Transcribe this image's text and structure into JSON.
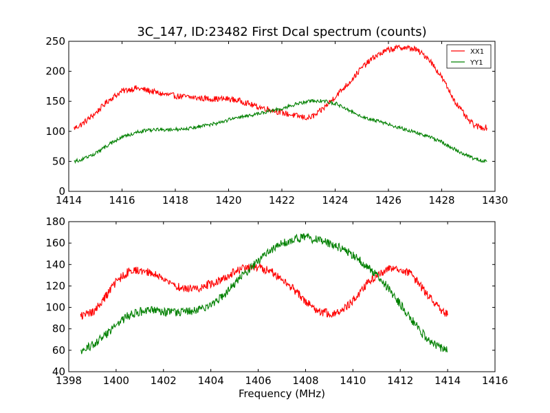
{
  "title": "3C_147, ID:23482 First Dcal spectrum (counts)",
  "colors": {
    "XX1": "#ff0000",
    "YY1": "#008000",
    "axes": "#000000",
    "background": "#ffffff"
  },
  "chart_data": [
    {
      "type": "line",
      "title": "3C_147, ID:23482 First Dcal spectrum (counts)",
      "xlabel": "",
      "ylabel": "",
      "xlim": [
        1414,
        1430
      ],
      "ylim": [
        0,
        250
      ],
      "xticks": [
        1414,
        1416,
        1418,
        1420,
        1422,
        1424,
        1426,
        1428,
        1430
      ],
      "yticks": [
        0,
        50,
        100,
        150,
        200,
        250
      ],
      "grid": false,
      "legend": {
        "placement": "top-right",
        "entries": [
          "XX1",
          "YY1"
        ]
      },
      "noise_amplitude": [
        5,
        3
      ],
      "series": [
        {
          "name": "XX1",
          "color": "#ff0000",
          "x": [
            1414.2,
            1414.5,
            1415.0,
            1415.5,
            1416.0,
            1416.5,
            1417.0,
            1417.5,
            1418.0,
            1418.5,
            1419.0,
            1419.5,
            1420.0,
            1420.5,
            1421.0,
            1421.5,
            1422.0,
            1422.5,
            1423.0,
            1423.3,
            1423.6,
            1424.0,
            1424.5,
            1425.0,
            1425.5,
            1426.0,
            1426.5,
            1427.0,
            1427.5,
            1428.0,
            1428.5,
            1429.0,
            1429.3,
            1429.7
          ],
          "y": [
            105,
            112,
            130,
            152,
            167,
            172,
            168,
            162,
            159,
            157,
            155,
            154,
            154,
            150,
            142,
            137,
            131,
            126,
            122,
            128,
            140,
            158,
            180,
            206,
            225,
            236,
            240,
            237,
            222,
            190,
            150,
            118,
            108,
            106
          ]
        },
        {
          "name": "YY1",
          "color": "#008000",
          "x": [
            1414.2,
            1414.5,
            1415.0,
            1415.5,
            1416.0,
            1416.5,
            1417.0,
            1417.5,
            1418.0,
            1418.5,
            1419.0,
            1419.5,
            1420.0,
            1420.5,
            1421.0,
            1421.5,
            1422.0,
            1422.5,
            1423.0,
            1423.5,
            1424.0,
            1424.5,
            1425.0,
            1425.5,
            1426.0,
            1426.5,
            1427.0,
            1427.5,
            1428.0,
            1428.5,
            1429.0,
            1429.5,
            1429.7
          ],
          "y": [
            50,
            53,
            63,
            78,
            90,
            98,
            102,
            103,
            103,
            105,
            109,
            113,
            119,
            124,
            128,
            133,
            138,
            145,
            150,
            151,
            147,
            135,
            125,
            118,
            112,
            105,
            98,
            92,
            82,
            70,
            58,
            51,
            51
          ]
        }
      ]
    },
    {
      "type": "line",
      "title": "",
      "xlabel": "Frequency (MHz)",
      "ylabel": "",
      "xlim": [
        1398,
        1416
      ],
      "ylim": [
        40,
        180
      ],
      "xticks": [
        1398,
        1400,
        1402,
        1404,
        1406,
        1408,
        1410,
        1412,
        1414,
        1416
      ],
      "yticks": [
        40,
        60,
        80,
        100,
        120,
        140,
        160,
        180
      ],
      "grid": false,
      "noise_amplitude": [
        4,
        4
      ],
      "series": [
        {
          "name": "XX1",
          "color": "#ff0000",
          "x": [
            1398.5,
            1399.0,
            1399.5,
            1400.0,
            1400.5,
            1401.0,
            1401.5,
            1402.0,
            1402.5,
            1403.0,
            1403.5,
            1404.0,
            1404.5,
            1405.0,
            1405.5,
            1406.0,
            1406.5,
            1407.0,
            1407.5,
            1408.0,
            1408.5,
            1409.0,
            1409.5,
            1410.0,
            1410.5,
            1411.0,
            1411.5,
            1412.0,
            1412.5,
            1413.0,
            1413.5,
            1414.0
          ],
          "y": [
            92,
            95,
            108,
            124,
            133,
            135,
            132,
            127,
            120,
            117,
            118,
            122,
            127,
            133,
            137,
            137,
            134,
            127,
            117,
            106,
            97,
            94,
            96,
            106,
            120,
            130,
            136,
            137,
            130,
            116,
            102,
            93
          ]
        },
        {
          "name": "YY1",
          "color": "#008000",
          "x": [
            1398.5,
            1399.0,
            1399.5,
            1400.0,
            1400.5,
            1401.0,
            1401.5,
            1402.0,
            1402.5,
            1403.0,
            1403.5,
            1404.0,
            1404.5,
            1405.0,
            1405.5,
            1406.0,
            1406.5,
            1407.0,
            1407.5,
            1408.0,
            1408.5,
            1409.0,
            1409.5,
            1410.0,
            1410.5,
            1411.0,
            1411.5,
            1412.0,
            1412.5,
            1413.0,
            1413.5,
            1414.0
          ],
          "y": [
            58,
            65,
            73,
            84,
            92,
            96,
            97,
            96,
            95,
            96,
            98,
            102,
            110,
            122,
            133,
            143,
            153,
            160,
            164,
            165,
            163,
            160,
            155,
            149,
            140,
            130,
            118,
            103,
            88,
            74,
            64,
            60
          ]
        }
      ]
    }
  ]
}
